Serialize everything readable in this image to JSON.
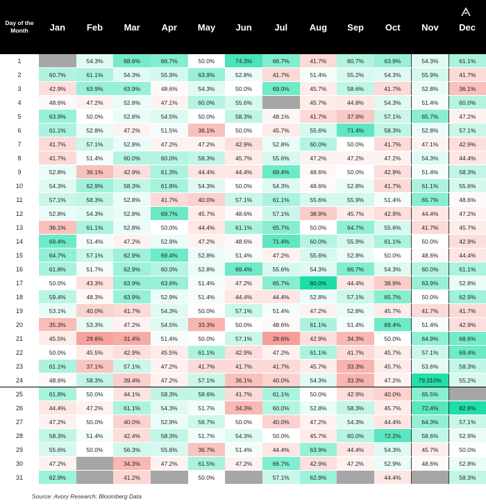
{
  "header": {
    "row_label": "Day of the Month",
    "months": [
      "Jan",
      "Feb",
      "Mar",
      "Apr",
      "May",
      "Jun",
      "Jul",
      "Aug",
      "Sep",
      "Oct",
      "Nov",
      "Dec"
    ]
  },
  "rows": [
    {
      "day": 1,
      "cells": [
        null,
        "54.3%",
        "68.6%",
        "66.7%",
        "50.0%",
        "74.3%",
        "66.7%",
        "41.7%",
        "60.7%",
        "63.9%",
        "54.3%",
        "61.1%"
      ]
    },
    {
      "day": 2,
      "cells": [
        "60.7%",
        "61.1%",
        "54.3%",
        "55.9%",
        "63.9%",
        "52.8%",
        "41.7%",
        "51.4%",
        "55.2%",
        "54.3%",
        "55.9%",
        "41.7%"
      ]
    },
    {
      "day": 3,
      "cells": [
        "42.9%",
        "63.9%",
        "63.9%",
        "48.6%",
        "54.3%",
        "50.0%",
        "69.0%",
        "45.7%",
        "58.6%",
        "41.7%",
        "52.8%",
        "36.1%"
      ]
    },
    {
      "day": 4,
      "cells": [
        "48.6%",
        "47.2%",
        "52.8%",
        "47.1%",
        "60.0%",
        "55.6%",
        null,
        "45.7%",
        "44.8%",
        "54.3%",
        "51.4%",
        "60.0%"
      ]
    },
    {
      "day": 5,
      "cells": [
        "63.9%",
        "50.0%",
        "52.8%",
        "54.5%",
        "50.0%",
        "58.3%",
        "48.1%",
        "41.7%",
        "37.9%",
        "57.1%",
        "65.7%",
        "47.2%"
      ]
    },
    {
      "day": 6,
      "cells": [
        "61.1%",
        "52.8%",
        "47.2%",
        "51.5%",
        "36.1%",
        "50.0%",
        "45.7%",
        "55.6%",
        "71.4%",
        "58.3%",
        "52.8%",
        "57.1%"
      ]
    },
    {
      "day": 7,
      "cells": [
        "41.7%",
        "57.1%",
        "52.8%",
        "47.2%",
        "47.2%",
        "42.9%",
        "52.8%",
        "60.0%",
        "50.0%",
        "41.7%",
        "47.1%",
        "42.9%"
      ]
    },
    {
      "day": 8,
      "cells": [
        "41.7%",
        "51.4%",
        "60.0%",
        "60.0%",
        "58.3%",
        "45.7%",
        "55.6%",
        "47.2%",
        "47.2%",
        "47.2%",
        "54.3%",
        "44.4%"
      ]
    },
    {
      "day": 9,
      "cells": [
        "52.8%",
        "36.1%",
        "42.9%",
        "61.3%",
        "44.4%",
        "44.4%",
        "69.4%",
        "48.6%",
        "50.0%",
        "42.9%",
        "51.4%",
        "58.3%"
      ]
    },
    {
      "day": 10,
      "cells": [
        "54.3%",
        "62.9%",
        "58.3%",
        "61.8%",
        "54.3%",
        "50.0%",
        "54.3%",
        "48.6%",
        "52.8%",
        "41.7%",
        "61.1%",
        "55.6%"
      ]
    },
    {
      "day": 11,
      "cells": [
        "57.1%",
        "58.3%",
        "52.8%",
        "41.7%",
        "40.0%",
        "57.1%",
        "61.1%",
        "55.6%",
        "55.9%",
        "51.4%",
        "65.7%",
        "48.6%"
      ]
    },
    {
      "day": 12,
      "cells": [
        "52.8%",
        "54.3%",
        "52.8%",
        "69.7%",
        "45.7%",
        "48.6%",
        "57.1%",
        "38.9%",
        "45.7%",
        "42.9%",
        "44.4%",
        "47.2%"
      ]
    },
    {
      "day": 13,
      "cells": [
        "36.1%",
        "61.1%",
        "52.8%",
        "50.0%",
        "44.4%",
        "61.1%",
        "65.7%",
        "50.0%",
        "64.7%",
        "55.6%",
        "41.7%",
        "45.7%"
      ]
    },
    {
      "day": 14,
      "cells": [
        "69.4%",
        "51.4%",
        "47.2%",
        "52.9%",
        "47.2%",
        "48.6%",
        "71.4%",
        "60.0%",
        "55.9%",
        "61.1%",
        "50.0%",
        "42.9%"
      ]
    },
    {
      "day": 15,
      "cells": [
        "64.7%",
        "57.1%",
        "62.9%",
        "69.4%",
        "52.8%",
        "51.4%",
        "47.2%",
        "55.6%",
        "52.8%",
        "50.0%",
        "48.6%",
        "44.4%"
      ]
    },
    {
      "day": 16,
      "cells": [
        "61.8%",
        "51.7%",
        "62.9%",
        "60.0%",
        "52.8%",
        "69.4%",
        "55.6%",
        "54.3%",
        "66.7%",
        "54.3%",
        "60.0%",
        "61.1%"
      ]
    },
    {
      "day": 17,
      "cells": [
        "50.0%",
        "43.3%",
        "63.9%",
        "63.6%",
        "51.4%",
        "47.2%",
        "65.7%",
        "80.0%",
        "44.4%",
        "38.9%",
        "63.9%",
        "52.8%"
      ]
    },
    {
      "day": 18,
      "cells": [
        "59.4%",
        "48.3%",
        "63.9%",
        "52.9%",
        "51.4%",
        "44.4%",
        "44.4%",
        "52.8%",
        "57.1%",
        "65.7%",
        "50.0%",
        "62.9%"
      ]
    },
    {
      "day": 19,
      "cells": [
        "53.1%",
        "40.0%",
        "41.7%",
        "54.3%",
        "50.0%",
        "57.1%",
        "51.4%",
        "47.2%",
        "52.8%",
        "45.7%",
        "41.7%",
        "41.7%"
      ]
    },
    {
      "day": 20,
      "cells": [
        "35.3%",
        "53.3%",
        "47.2%",
        "54.5%",
        "33.3%",
        "50.0%",
        "48.6%",
        "61.1%",
        "51.4%",
        "69.4%",
        "51.4%",
        "42.9%"
      ]
    },
    {
      "day": 21,
      "cells": [
        "45.5%",
        "29.6%",
        "31.4%",
        "51.4%",
        "50.0%",
        "57.1%",
        "28.6%",
        "42.9%",
        "34.3%",
        "50.0%",
        "64.9%",
        "68.6%"
      ]
    },
    {
      "day": 22,
      "cells": [
        "50.0%",
        "45.5%",
        "42.9%",
        "45.5%",
        "61.1%",
        "42.9%",
        "47.2%",
        "61.1%",
        "41.7%",
        "45.7%",
        "57.1%",
        "69.4%"
      ]
    },
    {
      "day": 23,
      "cells": [
        "61.1%",
        "37.1%",
        "57.1%",
        "47.2%",
        "41.7%",
        "41.7%",
        "41.7%",
        "45.7%",
        "33.3%",
        "45.7%",
        "53.6%",
        "58.3%"
      ]
    },
    {
      "day": 24,
      "cells": [
        "48.6%",
        "58.3%",
        "39.4%",
        "47.2%",
        "57.1%",
        "36.1%",
        "40.0%",
        "54.3%",
        "33.3%",
        "47.2%",
        "79.310%",
        "55.2%"
      ]
    },
    {
      "day": 25,
      "cells": [
        "61.8%",
        "50.0%",
        "44.1%",
        "58.3%",
        "58.6%",
        "41.7%",
        "61.1%",
        "50.0%",
        "42.9%",
        "40.0%",
        "65.5%",
        null
      ]
    },
    {
      "day": 26,
      "cells": [
        "44.4%",
        "47.2%",
        "61.1%",
        "54.3%",
        "51.7%",
        "34.3%",
        "60.0%",
        "52.8%",
        "58.3%",
        "45.7%",
        "72.4%",
        "82.8%"
      ]
    },
    {
      "day": 27,
      "cells": [
        "47.2%",
        "50.0%",
        "40.0%",
        "52.9%",
        "56.7%",
        "50.0%",
        "40.0%",
        "47.2%",
        "54.3%",
        "44.4%",
        "64.3%",
        "57.1%"
      ]
    },
    {
      "day": 28,
      "cells": [
        "58.3%",
        "51.4%",
        "42.4%",
        "58.3%",
        "51.7%",
        "54.3%",
        "50.0%",
        "45.7%",
        "60.0%",
        "72.2%",
        "58.6%",
        "52.9%"
      ]
    },
    {
      "day": 29,
      "cells": [
        "55.6%",
        "50.0%",
        "56.3%",
        "55.6%",
        "36.7%",
        "51.4%",
        "44.4%",
        "63.9%",
        "44.4%",
        "54.3%",
        "45.7%",
        "50.0%"
      ]
    },
    {
      "day": 30,
      "cells": [
        "47.2%",
        null,
        "34.3%",
        "47.2%",
        "61.5%",
        "47.2%",
        "66.7%",
        "42.9%",
        "47.2%",
        "52.9%",
        "48.6%",
        "52.8%"
      ]
    },
    {
      "day": 31,
      "cells": [
        "62.9%",
        null,
        "41.2%",
        null,
        "50.0%",
        null,
        "57.1%",
        "62.9%",
        null,
        "44.4%",
        null,
        "58.3%"
      ]
    }
  ],
  "footer": "Source: Avory Research; Bloomberg Data"
}
